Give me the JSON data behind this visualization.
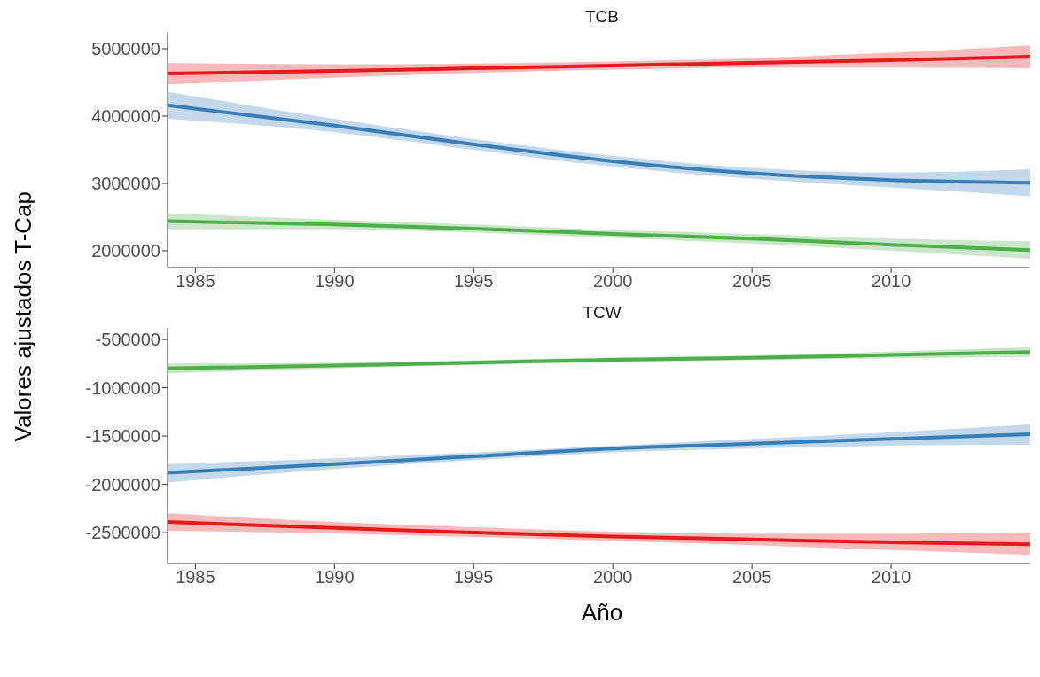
{
  "chart_data": [
    {
      "type": "line",
      "title": "TCB",
      "ylabel": "Valores ajustados T-Cap",
      "x": [
        1984,
        1990,
        1995,
        2000,
        2005,
        2010,
        2015
      ],
      "xlim": [
        1984,
        2015
      ],
      "xticks": [
        1985,
        1990,
        1995,
        2000,
        2005,
        2010
      ],
      "ylim": [
        1750000,
        5250000
      ],
      "yticks": [
        2000000,
        3000000,
        4000000,
        5000000
      ],
      "grid": false,
      "legend": false,
      "marker": "none",
      "line_style": "solid",
      "series": [
        {
          "color": "#e41a1c",
          "values": [
            4630000,
            4670000,
            4710000,
            4750000,
            4790000,
            4830000,
            4880000
          ],
          "lower": [
            4470000,
            4570000,
            4640000,
            4690000,
            4720000,
            4720000,
            4710000
          ],
          "upper": [
            4790000,
            4770000,
            4780000,
            4810000,
            4860000,
            4940000,
            5050000
          ]
        },
        {
          "color": "#377eb8",
          "values": [
            4160000,
            3860000,
            3580000,
            3330000,
            3150000,
            3050000,
            3010000
          ],
          "lower": [
            3960000,
            3760000,
            3500000,
            3250000,
            3070000,
            2940000,
            2810000
          ],
          "upper": [
            4360000,
            3960000,
            3660000,
            3410000,
            3230000,
            3160000,
            3210000
          ]
        },
        {
          "color": "#4daf4a",
          "values": [
            2440000,
            2390000,
            2330000,
            2250000,
            2180000,
            2090000,
            2010000
          ],
          "lower": [
            2320000,
            2320000,
            2270000,
            2190000,
            2110000,
            2000000,
            1880000
          ],
          "upper": [
            2560000,
            2460000,
            2390000,
            2310000,
            2250000,
            2180000,
            2140000
          ]
        }
      ]
    },
    {
      "type": "line",
      "title": "TCW",
      "xlabel": "Año",
      "x": [
        1984,
        1990,
        1995,
        2000,
        2005,
        2010,
        2015
      ],
      "xlim": [
        1984,
        2015
      ],
      "xticks": [
        1985,
        1990,
        1995,
        2000,
        2005,
        2010
      ],
      "ylim": [
        -2820000,
        -380000
      ],
      "yticks": [
        -2500000,
        -2000000,
        -1500000,
        -1000000,
        -500000
      ],
      "grid": false,
      "legend": false,
      "marker": "none",
      "line_style": "solid",
      "series": [
        {
          "color": "#4daf4a",
          "values": [
            -800000,
            -770000,
            -740000,
            -710000,
            -690000,
            -660000,
            -630000
          ],
          "lower": [
            -850000,
            -800000,
            -765000,
            -735000,
            -715000,
            -695000,
            -680000
          ],
          "upper": [
            -750000,
            -740000,
            -715000,
            -685000,
            -665000,
            -625000,
            -580000
          ]
        },
        {
          "color": "#377eb8",
          "values": [
            -1880000,
            -1790000,
            -1710000,
            -1630000,
            -1580000,
            -1530000,
            -1480000
          ],
          "lower": [
            -1980000,
            -1840000,
            -1750000,
            -1670000,
            -1630000,
            -1600000,
            -1590000
          ],
          "upper": [
            -1790000,
            -1730000,
            -1670000,
            -1600000,
            -1530000,
            -1460000,
            -1380000
          ]
        },
        {
          "color": "#e41a1c",
          "values": [
            -2390000,
            -2450000,
            -2500000,
            -2540000,
            -2570000,
            -2600000,
            -2620000
          ],
          "lower": [
            -2480000,
            -2510000,
            -2545000,
            -2585000,
            -2630000,
            -2680000,
            -2730000
          ],
          "upper": [
            -2300000,
            -2390000,
            -2445000,
            -2490000,
            -2510000,
            -2510000,
            -2500000
          ]
        }
      ]
    }
  ]
}
